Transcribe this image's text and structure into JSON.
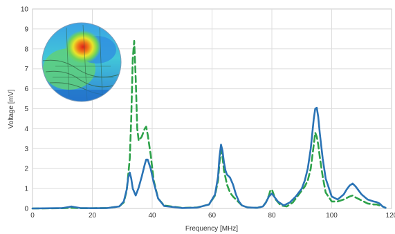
{
  "chart_data": {
    "type": "line",
    "xlabel": "Frequency [MHz]",
    "ylabel": "Voltage [mV]",
    "xlim": [
      0,
      120
    ],
    "ylim": [
      0,
      10
    ],
    "xticks": [
      0,
      20,
      40,
      60,
      80,
      100,
      120
    ],
    "yticks": [
      0,
      1,
      2,
      3,
      4,
      5,
      6,
      7,
      8,
      9,
      10
    ],
    "grid": true,
    "inset_image": "field-distribution-heatmap-sphere",
    "series": [
      {
        "style": "solid",
        "color": "#2a73b5",
        "x": [
          0,
          10,
          12,
          13,
          14,
          16,
          20,
          25,
          29,
          30.5,
          31.5,
          32,
          32.5,
          33,
          33.5,
          34.5,
          35.5,
          36.5,
          37.5,
          38,
          38.5,
          39.5,
          40.5,
          42,
          44,
          50,
          55,
          59,
          61,
          62,
          62.5,
          63,
          63.5,
          64,
          64.5,
          65,
          66,
          67,
          68,
          69,
          70,
          72,
          75,
          77,
          78,
          79,
          80,
          81,
          82,
          84,
          86,
          88,
          90,
          91,
          92,
          93,
          94,
          94.5,
          95,
          95.5,
          96,
          97,
          98,
          100,
          102,
          104,
          105,
          106,
          107,
          108,
          110,
          112,
          114,
          115,
          116,
          117,
          118
        ],
        "y": [
          0.0,
          0.02,
          0.07,
          0.1,
          0.07,
          0.02,
          0.01,
          0.02,
          0.1,
          0.35,
          0.95,
          1.55,
          1.8,
          1.5,
          1.0,
          0.65,
          1.05,
          1.6,
          2.2,
          2.45,
          2.45,
          2.0,
          1.3,
          0.5,
          0.12,
          0.02,
          0.04,
          0.2,
          0.7,
          1.6,
          2.6,
          3.2,
          2.9,
          2.3,
          1.9,
          1.7,
          1.55,
          1.2,
          0.7,
          0.35,
          0.15,
          0.05,
          0.03,
          0.1,
          0.3,
          0.6,
          0.75,
          0.55,
          0.35,
          0.15,
          0.3,
          0.6,
          1.0,
          1.4,
          2.0,
          3.0,
          4.5,
          5.0,
          5.05,
          4.6,
          3.8,
          2.5,
          1.5,
          0.6,
          0.45,
          0.7,
          0.95,
          1.15,
          1.25,
          1.1,
          0.7,
          0.45,
          0.35,
          0.32,
          0.25,
          0.1,
          0.03
        ]
      },
      {
        "style": "dashed",
        "color": "#2ea24a",
        "x": [
          0,
          10,
          13,
          16,
          20,
          25,
          29,
          30.5,
          31.5,
          32,
          32.5,
          33,
          33.5,
          34,
          34.5,
          35,
          35.5,
          36.5,
          37.5,
          38,
          38.5,
          39.5,
          40.5,
          42,
          44,
          50,
          55,
          59,
          61,
          62,
          62.5,
          63,
          63.5,
          64,
          65,
          66,
          67,
          68,
          69,
          70,
          72,
          75,
          77,
          78,
          79,
          79.5,
          80,
          80.5,
          81,
          83,
          85,
          87,
          89,
          91,
          92,
          93,
          94,
          94.5,
          95,
          95.5,
          96,
          97,
          98,
          100,
          102,
          104,
          106,
          107,
          108,
          110,
          112,
          114,
          115,
          116,
          117,
          118
        ],
        "y": [
          0.0,
          0.01,
          0.03,
          0.01,
          0.01,
          0.02,
          0.1,
          0.3,
          0.9,
          1.7,
          2.5,
          4.5,
          7.5,
          8.4,
          6.5,
          4.0,
          3.4,
          3.6,
          4.0,
          4.1,
          3.7,
          2.7,
          1.4,
          0.5,
          0.15,
          0.03,
          0.05,
          0.2,
          0.65,
          1.4,
          2.3,
          2.9,
          2.6,
          1.9,
          1.2,
          0.8,
          0.6,
          0.45,
          0.3,
          0.15,
          0.05,
          0.03,
          0.1,
          0.3,
          0.65,
          0.9,
          0.95,
          0.75,
          0.5,
          0.15,
          0.1,
          0.3,
          0.7,
          1.1,
          1.4,
          2.0,
          3.2,
          3.8,
          3.6,
          3.2,
          2.6,
          1.6,
          0.8,
          0.35,
          0.35,
          0.45,
          0.6,
          0.65,
          0.55,
          0.4,
          0.25,
          0.2,
          0.2,
          0.15,
          0.1,
          0.03
        ]
      }
    ]
  }
}
